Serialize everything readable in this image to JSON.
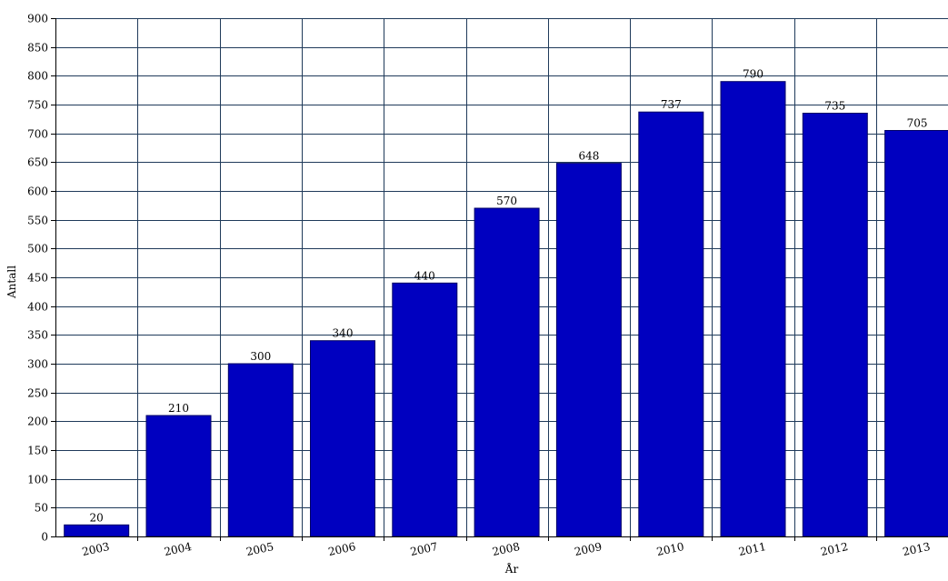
{
  "chart_data": {
    "type": "bar",
    "title": "",
    "xlabel": "År",
    "ylabel": "Antall",
    "categories": [
      "2003",
      "2004",
      "2005",
      "2006",
      "2007",
      "2008",
      "2009",
      "2010",
      "2011",
      "2012",
      "2013"
    ],
    "values": [
      20,
      210,
      300,
      340,
      440,
      570,
      648,
      737,
      790,
      735,
      705
    ],
    "data_labels": [
      "20",
      "210",
      "300",
      "340",
      "440",
      "570",
      "648",
      "737",
      "790",
      "735",
      "705"
    ],
    "ylim": [
      0,
      900
    ],
    "ytick_step": 50,
    "yticks": [
      "0",
      "50",
      "100",
      "150",
      "200",
      "250",
      "300",
      "350",
      "400",
      "450",
      "500",
      "550",
      "600",
      "650",
      "700",
      "750",
      "800",
      "850",
      "900"
    ],
    "grid": true,
    "legend": "none",
    "colors": {
      "bar": "#0000c0",
      "bar_edge": "#000066",
      "grid": "#1f3a5a",
      "axis": "#000000"
    }
  }
}
